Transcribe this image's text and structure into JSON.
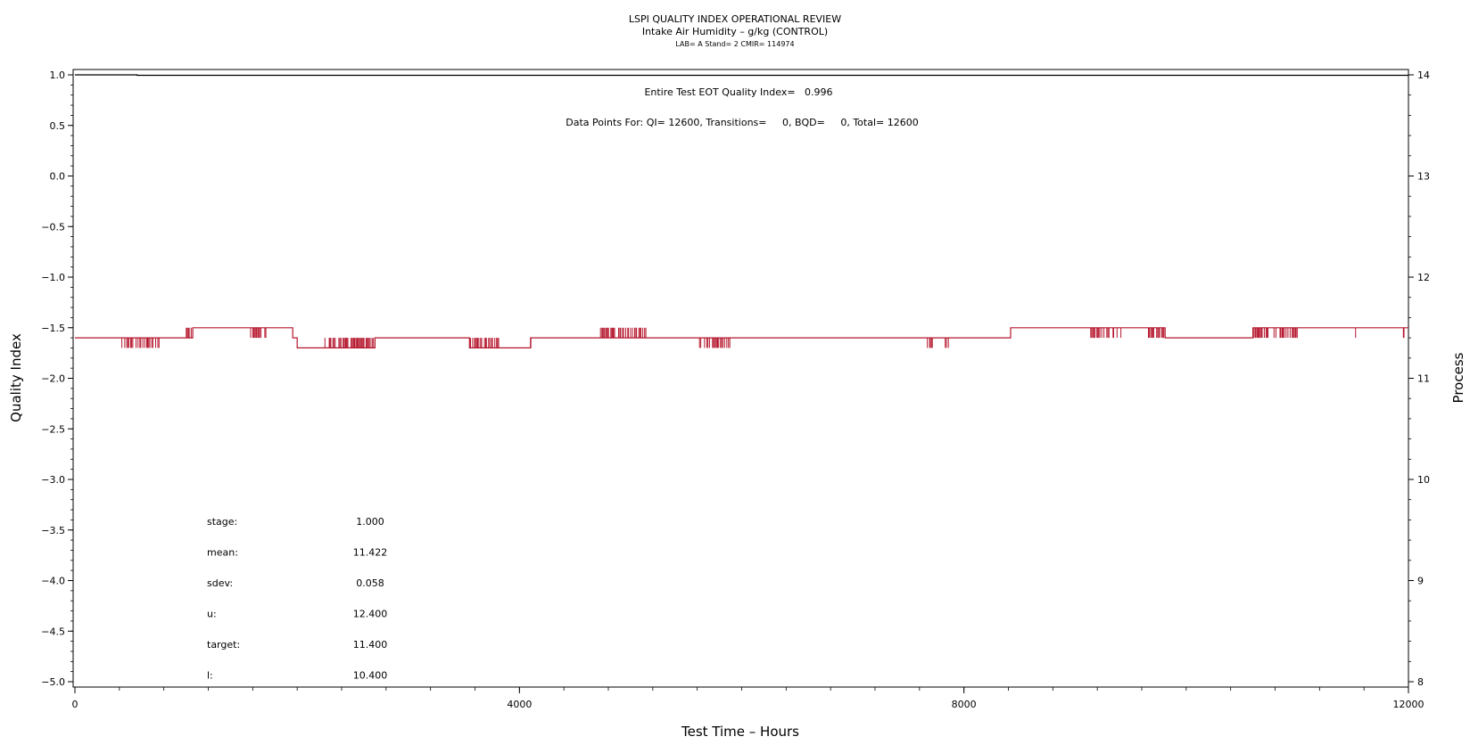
{
  "header": {
    "title": "LSPI QUALITY INDEX OPERATIONAL REVIEW",
    "subtitle": "Intake Air Humidity – g/kg (CONTROL)",
    "info": "LAB= A Stand= 2 CMIR= 114974"
  },
  "annotations": {
    "eot": "Entire Test EOT Quality Index=   0.996",
    "datapoints": "Data Points For: QI= 12600, Transitions=     0, BQD=     0, Total= 12600"
  },
  "stats": [
    {
      "label": "stage:",
      "value": "1.000"
    },
    {
      "label": "mean:",
      "value": "11.422"
    },
    {
      "label": "sdev:",
      "value": "0.058"
    },
    {
      "label": "u:",
      "value": "12.400"
    },
    {
      "label": "target:",
      "value": "11.400"
    },
    {
      "label": "l:",
      "value": "10.400"
    }
  ],
  "colors": {
    "process": "#b5162d",
    "quality_index": "#000000"
  },
  "chart_data": {
    "type": "line",
    "xlabel": "Test Time – Hours",
    "ylabel": "Quality Index",
    "y2label": "Process",
    "xlim": [
      0,
      12000
    ],
    "ylim": [
      -5.0,
      1.0
    ],
    "y2lim": [
      8,
      14
    ],
    "x_ticks": [
      0,
      4000,
      8000,
      12000
    ],
    "y_ticks": [
      1.0,
      0.5,
      0.0,
      -0.5,
      -1.0,
      -1.5,
      -2.0,
      -2.5,
      -3.0,
      -3.5,
      -4.0,
      -4.5,
      -5.0
    ],
    "y_tick_labels": [
      "1.0",
      "0.5",
      "0.0",
      "−0.5",
      "−1.0",
      "−1.5",
      "−2.0",
      "−2.5",
      "−3.0",
      "−3.5",
      "−4.0",
      "−4.5",
      "−5.0"
    ],
    "y2_ticks": [
      8,
      9,
      10,
      11,
      12,
      13,
      14
    ],
    "series": [
      {
        "name": "Quality Index",
        "axis": "left",
        "x": [
          0,
          560,
          560,
          12000
        ],
        "y": [
          1.0,
          1.0,
          0.996,
          0.996
        ]
      },
      {
        "name": "Process",
        "axis": "right",
        "steps": [
          {
            "x0": 0,
            "x1": 1060,
            "y": 11.4
          },
          {
            "x0": 1060,
            "x1": 1960,
            "y": 11.5
          },
          {
            "x0": 1960,
            "x1": 2000,
            "y": 11.4
          },
          {
            "x0": 2000,
            "x1": 2700,
            "y": 11.3
          },
          {
            "x0": 2700,
            "x1": 3550,
            "y": 11.4
          },
          {
            "x0": 3550,
            "x1": 4100,
            "y": 11.3
          },
          {
            "x0": 4100,
            "x1": 8420,
            "y": 11.4
          },
          {
            "x0": 8420,
            "x1": 9810,
            "y": 11.5
          },
          {
            "x0": 9810,
            "x1": 10600,
            "y": 11.4
          },
          {
            "x0": 10600,
            "x1": 12000,
            "y": 11.5
          }
        ],
        "spikes": [
          {
            "x0": 420,
            "x1": 760,
            "y": 11.3
          },
          {
            "x0": 1000,
            "x1": 1100,
            "y": 11.5
          },
          {
            "x0": 1580,
            "x1": 1720,
            "y": 11.4
          },
          {
            "x0": 2240,
            "x1": 2700,
            "y": 11.4
          },
          {
            "x0": 3550,
            "x1": 3820,
            "y": 11.4
          },
          {
            "x0": 4100,
            "x1": 4200,
            "y": 11.4
          },
          {
            "x0": 4720,
            "x1": 5140,
            "y": 11.5
          },
          {
            "x0": 5620,
            "x1": 5900,
            "y": 11.3
          },
          {
            "x0": 7670,
            "x1": 7720,
            "y": 11.3
          },
          {
            "x0": 7830,
            "x1": 7860,
            "y": 11.3
          },
          {
            "x0": 9140,
            "x1": 9430,
            "y": 11.4
          },
          {
            "x0": 9660,
            "x1": 9810,
            "y": 11.4
          },
          {
            "x0": 10600,
            "x1": 11000,
            "y": 11.4
          },
          {
            "x0": 11520,
            "x1": 11540,
            "y": 11.4
          },
          {
            "x0": 11950,
            "x1": 11970,
            "y": 11.4
          }
        ]
      }
    ]
  }
}
